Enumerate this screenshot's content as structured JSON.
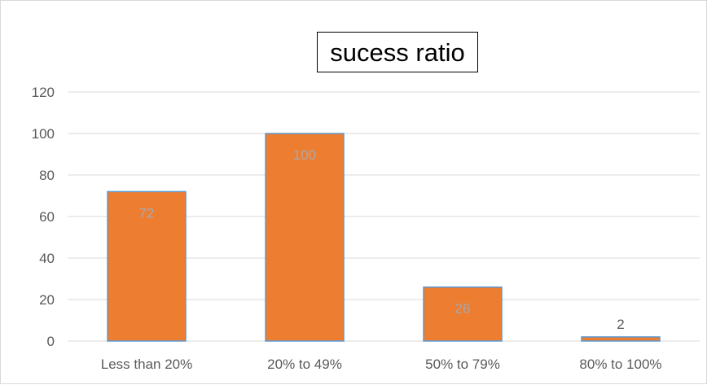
{
  "colors": {
    "bar_fill": "#ed7d31",
    "bar_stroke": "#5b9bd5",
    "grid": "#d9d9d9",
    "tick_text": "#595959",
    "data_label_inside": "#a9a9a9",
    "data_label_outside": "#595959"
  },
  "chart_data": {
    "type": "bar",
    "title": "sucess ratio",
    "categories": [
      "Less than 20%",
      "20% to 49%",
      "50% to 79%",
      "80% to 100%"
    ],
    "values": [
      72,
      100,
      26,
      2
    ],
    "data_labels": [
      "72",
      "100",
      "26",
      "2"
    ],
    "ylim": [
      0,
      120
    ],
    "yticks": [
      0,
      20,
      40,
      60,
      80,
      100,
      120
    ],
    "grid": true,
    "legend": "none",
    "xlabel": "",
    "ylabel": ""
  }
}
